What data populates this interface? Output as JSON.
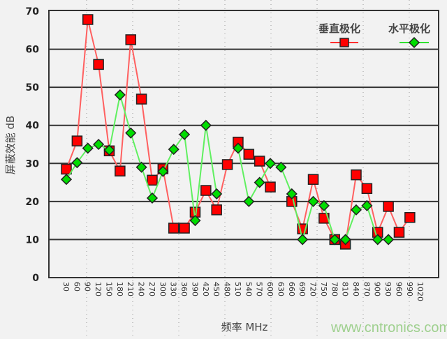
{
  "chart_data": {
    "type": "line",
    "title": "",
    "xlabel": "频率 MHz",
    "ylabel": "屏蔽效能 dB",
    "ylim": [
      0,
      70
    ],
    "yticks": [
      0,
      10,
      20,
      30,
      40,
      50,
      60,
      70
    ],
    "grid": "horizontal",
    "legend_placement": "top-right",
    "categories": [
      "30",
      "60",
      "90",
      "120",
      "150",
      "180",
      "210",
      "240",
      "270",
      "300",
      "330",
      "360",
      "390",
      "420",
      "450",
      "480",
      "510",
      "540",
      "570",
      "600",
      "630",
      "660",
      "690",
      "720",
      "750",
      "780",
      "810",
      "840",
      "870",
      "900",
      "930",
      "960",
      "990",
      "1020"
    ],
    "series": [
      {
        "name": "垂直极化",
        "color": "#ff0000",
        "line_color": "#ff6060",
        "marker": "square",
        "values": [
          28.5,
          35.9,
          67.8,
          56,
          33.3,
          28,
          62.5,
          46.9,
          25.6,
          28.6,
          13,
          13,
          17.2,
          22.9,
          17.8,
          29.7,
          35.6,
          32.4,
          30.6,
          23.8,
          null,
          20,
          12.8,
          25.8,
          15.6,
          10,
          8.8,
          27,
          23.4,
          11.9,
          18.7,
          11.9,
          15.8,
          null
        ]
      },
      {
        "name": "水平极化",
        "color": "#00dd00",
        "line_color": "#60f060",
        "marker": "diamond",
        "values": [
          25.8,
          30.2,
          34,
          35,
          33.5,
          48,
          38,
          29,
          20.9,
          27.9,
          33.7,
          37.6,
          15,
          40,
          22,
          null,
          34,
          20,
          25,
          30,
          29,
          22,
          10,
          20,
          18.9,
          10,
          10,
          17.8,
          18.9,
          10,
          10,
          null,
          null,
          null
        ]
      }
    ]
  },
  "watermark": "www.cntronics.com"
}
